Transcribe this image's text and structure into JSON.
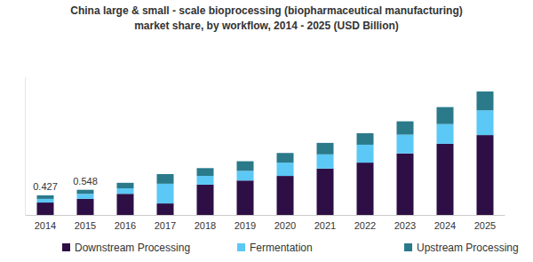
{
  "chart_data": {
    "type": "bar",
    "stacked": true,
    "tick_labels": "x",
    "title": "China large & small - scale bioprocessing (biopharmaceutical manufacturing) market share, by workflow, 2014 - 2025 (USD Billion)",
    "categories": [
      "2014",
      "2015",
      "2016",
      "2017",
      "2018",
      "2019",
      "2020",
      "2021",
      "2022",
      "2023",
      "2024",
      "2025"
    ],
    "series": [
      {
        "name": "Downstream Processing",
        "color": "#2e0f45",
        "values": [
          0.27,
          0.35,
          0.46,
          0.25,
          0.66,
          0.75,
          0.85,
          1.01,
          1.14,
          1.34,
          1.55,
          1.74
        ]
      },
      {
        "name": "Fermentation",
        "color": "#5bc8f5",
        "values": [
          0.08,
          0.11,
          0.12,
          0.43,
          0.19,
          0.21,
          0.29,
          0.31,
          0.39,
          0.41,
          0.43,
          0.54
        ]
      },
      {
        "name": "Upstream Processing",
        "color": "#2a7a8a",
        "values": [
          0.077,
          0.088,
          0.12,
          0.21,
          0.17,
          0.21,
          0.21,
          0.25,
          0.25,
          0.29,
          0.37,
          0.41
        ]
      }
    ],
    "annotations": [
      {
        "x": "2014",
        "text": "0.427"
      },
      {
        "x": "2015",
        "text": "0.548"
      }
    ],
    "ylim": [
      0,
      3.0
    ],
    "legend": "bottom"
  }
}
